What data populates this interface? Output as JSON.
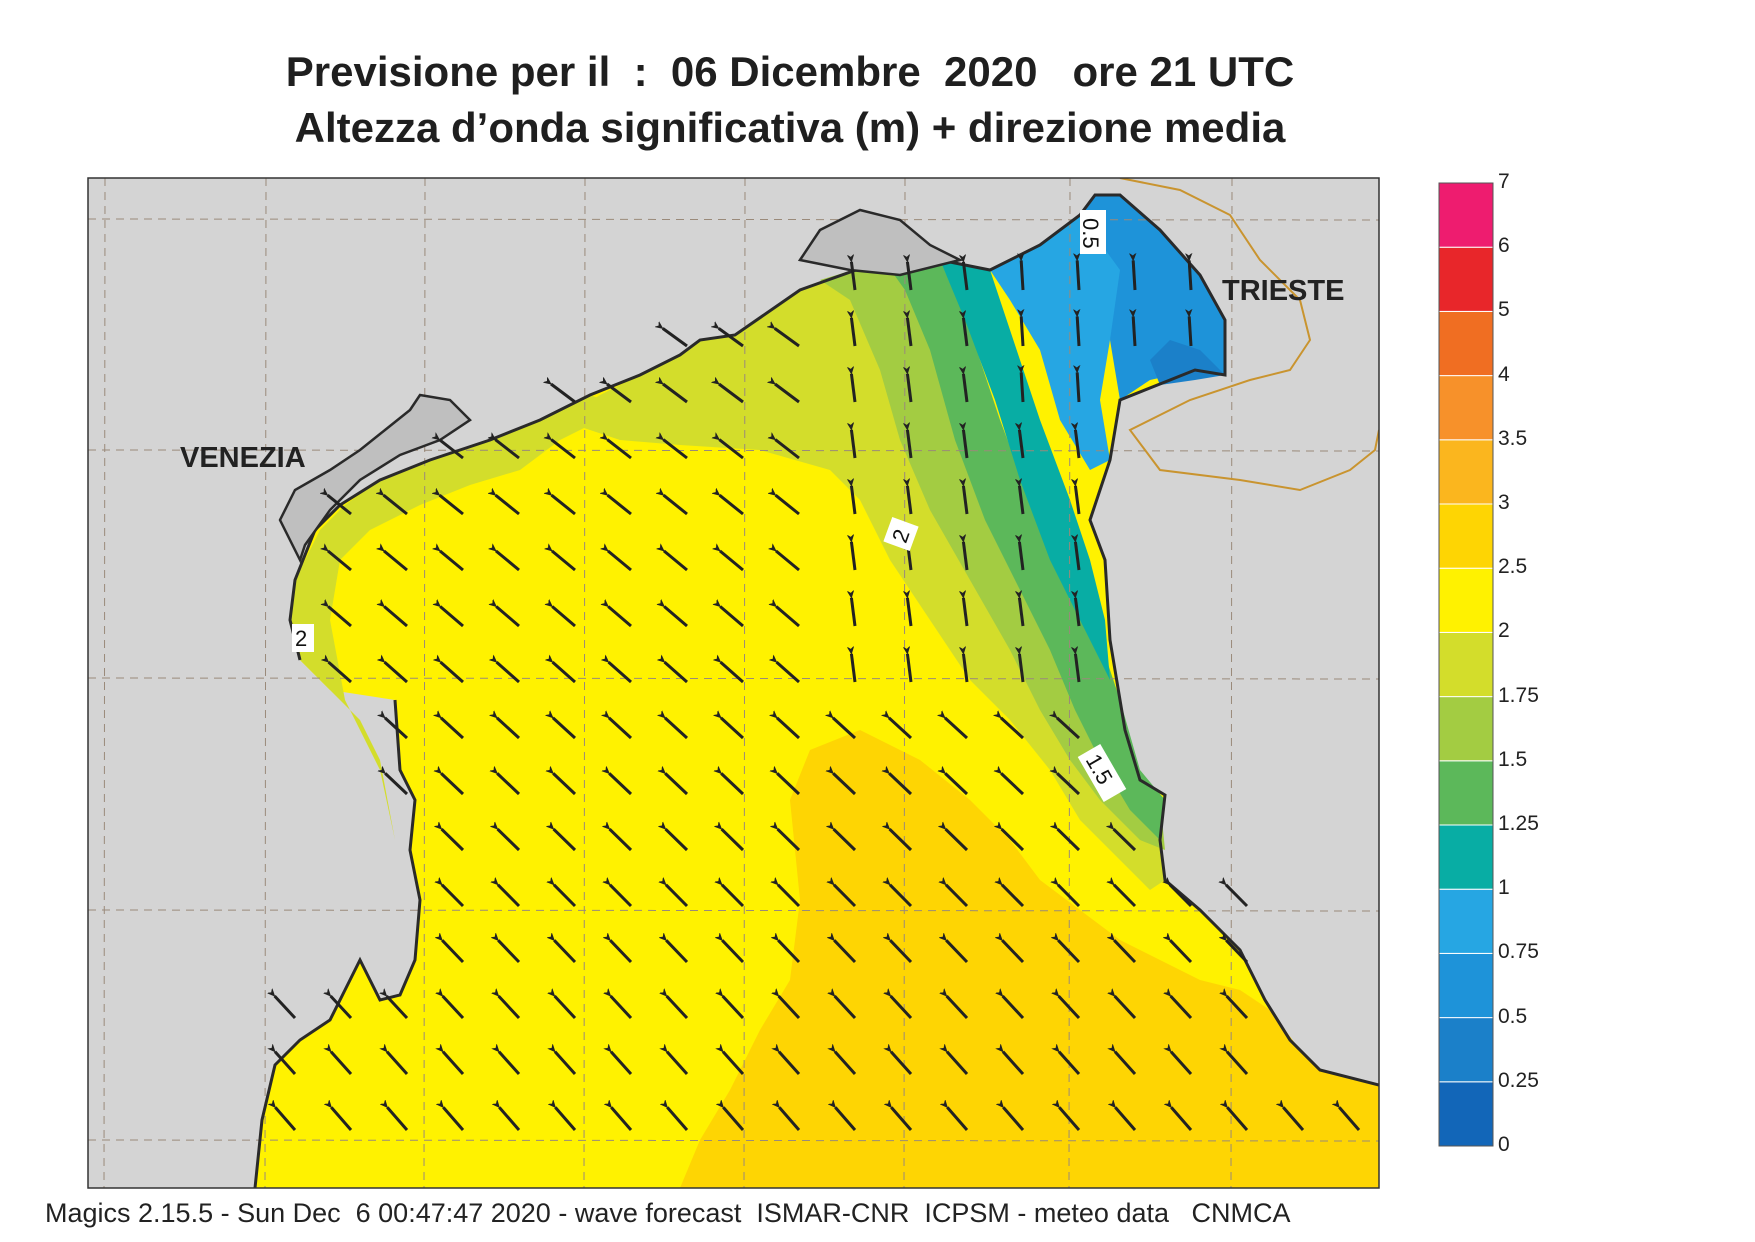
{
  "title": {
    "line1": "Previsione per il  :  06 Dicembre  2020   ore 21 UTC",
    "line2": "Altezza d’onda significativa (m) + direzione media"
  },
  "map": {
    "cities": [
      {
        "name": "VENEZIA"
      },
      {
        "name": "TRIESTE"
      }
    ],
    "contour_labels": [
      "0.5",
      "2",
      "2",
      "1.5"
    ],
    "land_color": "#d4d4d4",
    "coast_color": "#2a2a2a",
    "border_color": "#c9942f",
    "arrow_color": "#222222"
  },
  "colorbar": {
    "levels": [
      "0",
      "0.25",
      "0.5",
      "0.75",
      "1",
      "1.25",
      "1.5",
      "1.75",
      "2",
      "2.5",
      "3",
      "3.5",
      "4",
      "5",
      "6",
      "7"
    ],
    "colors": [
      "#1266b8",
      "#1b80c9",
      "#1e93d9",
      "#26a6e3",
      "#08ada4",
      "#5cb85a",
      "#a3cc42",
      "#d3dd2b",
      "#fff200",
      "#fed503",
      "#fbb61e",
      "#f7912a",
      "#f06e22",
      "#e8262a",
      "#ee1c6f"
    ]
  },
  "footer": "Magics 2.15.5 - Sun Dec  6 00:47:47 2020 - wave forecast  ISMAR-CNR  ICPSM - meteo data   CNMCA"
}
